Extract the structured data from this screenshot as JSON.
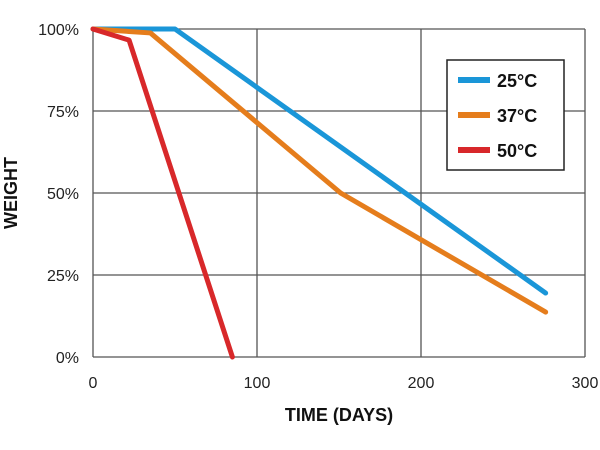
{
  "chart_data": {
    "type": "line",
    "title": "",
    "xlabel": "TIME (DAYS)",
    "ylabel": "WEIGHT",
    "xlim": [
      0,
      300
    ],
    "ylim": [
      0,
      100
    ],
    "x_ticks": [
      "0",
      "100",
      "200",
      "300"
    ],
    "y_ticks": [
      "0%",
      "25%",
      "50%",
      "75%",
      "100%"
    ],
    "grid": true,
    "legend_position": "top-right",
    "series": [
      {
        "name": "25°C",
        "color": "#1a96d8",
        "x": [
          0,
          50,
          276
        ],
        "y": [
          100,
          100,
          19.5
        ]
      },
      {
        "name": "37°C",
        "color": "#e57d1c",
        "x": [
          0,
          35,
          151,
          276
        ],
        "y": [
          100,
          98.8,
          50,
          13.7
        ]
      },
      {
        "name": "50°C",
        "color": "#d8282a",
        "x": [
          0,
          22,
          85
        ],
        "y": [
          100,
          96.6,
          0
        ]
      }
    ]
  }
}
